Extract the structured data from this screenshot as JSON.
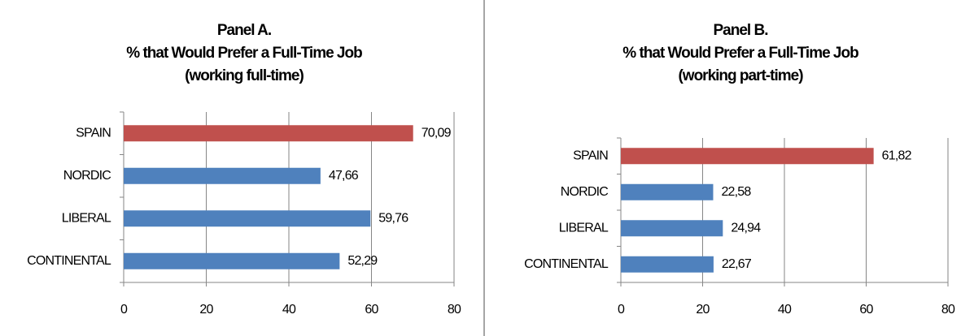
{
  "chart_data": [
    {
      "type": "bar",
      "orientation": "horizontal",
      "title": [
        "Panel A.",
        "% that Would Prefer a Full-Time Job",
        "(working full-time)"
      ],
      "categories": [
        "SPAIN",
        "NORDIC",
        "LIBERAL",
        "CONTINENTAL"
      ],
      "values": [
        70.09,
        47.66,
        59.76,
        52.29
      ],
      "value_labels": [
        "70,09",
        "47,66",
        "59,76",
        "52,29"
      ],
      "colors": [
        "#c0504d",
        "#4f81bd",
        "#4f81bd",
        "#4f81bd"
      ],
      "xlim": [
        0,
        80
      ],
      "xticks": [
        0,
        20,
        40,
        60,
        80
      ],
      "grid": true
    },
    {
      "type": "bar",
      "orientation": "horizontal",
      "title": [
        "Panel B.",
        "% that Would Prefer a Full-Time Job",
        "(working part-time)"
      ],
      "categories": [
        "SPAIN",
        "NORDIC",
        "LIBERAL",
        "CONTINENTAL"
      ],
      "values": [
        61.82,
        22.58,
        24.94,
        22.67
      ],
      "value_labels": [
        "61,82",
        "22,58",
        "24,94",
        "22,67"
      ],
      "colors": [
        "#c0504d",
        "#4f81bd",
        "#4f81bd",
        "#4f81bd"
      ],
      "xlim": [
        0,
        80
      ],
      "xticks": [
        0,
        20,
        40,
        60,
        80
      ],
      "grid": true
    }
  ]
}
